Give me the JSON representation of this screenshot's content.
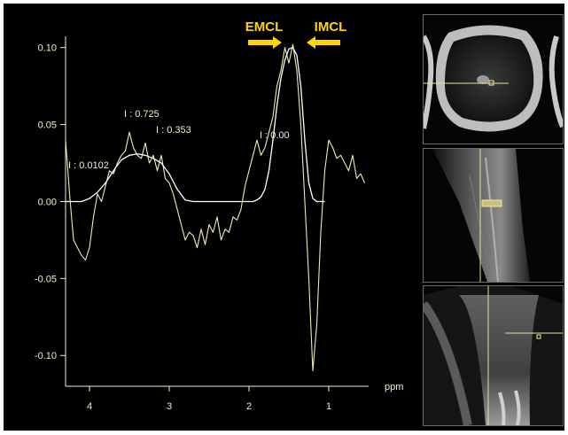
{
  "colors": {
    "background": "#000000",
    "axis": "#f3efc7",
    "spectrum": "#f0ecb4",
    "fit": "#ffffff",
    "annotation": "#ffd400",
    "crosshair": "#e8e0a0",
    "voxel": "#f5eaa0"
  },
  "labels": {
    "emcl": "EMCL",
    "imcl": "IMCL",
    "x_unit": "ppm"
  },
  "integrals": [
    {
      "text": "I : 0.0102",
      "ppm": 4.2
    },
    {
      "text": "I : 0.725",
      "ppm": 3.5
    },
    {
      "text": "I : 0.353",
      "ppm": 3.1
    },
    {
      "text": "I : 0.00",
      "ppm": 1.8
    }
  ],
  "chart_data": {
    "type": "line",
    "xlabel": "ppm",
    "ylabel": "",
    "x_reversed": true,
    "xlim": [
      4.3,
      0.5
    ],
    "ylim": [
      -0.12,
      0.105
    ],
    "xticks": [
      "4",
      "3",
      "2",
      "1"
    ],
    "yticks": [
      "0.10",
      "0.05",
      "0.00",
      "-0.05",
      "-0.10"
    ],
    "grid": false,
    "legend": "none",
    "annotations": [
      "EMCL",
      "IMCL",
      "I : 0.0102",
      "I : 0.725",
      "I : 0.353",
      "I : 0.00"
    ],
    "series": [
      {
        "x": [
          4.3,
          4.25,
          4.2,
          4.15,
          4.1,
          4.05,
          4.0,
          3.95,
          3.9,
          3.85,
          3.8,
          3.75,
          3.7,
          3.65,
          3.6,
          3.55,
          3.5,
          3.45,
          3.4,
          3.35,
          3.3,
          3.25,
          3.2,
          3.15,
          3.1,
          3.05,
          3.0,
          2.95,
          2.9,
          2.85,
          2.8,
          2.75,
          2.7,
          2.65,
          2.6,
          2.55,
          2.5,
          2.45,
          2.4,
          2.35,
          2.3,
          2.25,
          2.2,
          2.15,
          2.1,
          2.05,
          2.0,
          1.95,
          1.9,
          1.85,
          1.8,
          1.75,
          1.7,
          1.65,
          1.6,
          1.55,
          1.5,
          1.45,
          1.4,
          1.35,
          1.3,
          1.25,
          1.2,
          1.15,
          1.1,
          1.05,
          1.0,
          0.95,
          0.9,
          0.85,
          0.8,
          0.75,
          0.7,
          0.65,
          0.6,
          0.55
        ],
        "values": [
          0.04,
          0.005,
          -0.025,
          -0.03,
          -0.035,
          -0.038,
          -0.03,
          -0.01,
          0.005,
          0.0,
          0.01,
          0.02,
          0.018,
          0.025,
          0.03,
          0.033,
          0.045,
          0.035,
          0.03,
          0.028,
          0.038,
          0.025,
          0.03,
          0.02,
          0.03,
          0.015,
          0.012,
          0.005,
          -0.005,
          -0.015,
          -0.025,
          -0.02,
          -0.022,
          -0.03,
          -0.018,
          -0.028,
          -0.015,
          -0.02,
          -0.01,
          -0.025,
          -0.018,
          -0.02,
          -0.01,
          -0.012,
          -0.005,
          0.01,
          0.02,
          0.03,
          0.04,
          0.03,
          0.035,
          0.045,
          0.055,
          0.075,
          0.085,
          0.1,
          0.09,
          0.102,
          0.085,
          0.05,
          0.0,
          -0.05,
          -0.11,
          -0.08,
          -0.02,
          0.02,
          0.04,
          0.035,
          0.028,
          0.03,
          0.025,
          0.02,
          0.03,
          0.015,
          0.018,
          0.012
        ]
      },
      {
        "x": [
          4.3,
          4.2,
          4.1,
          4.0,
          3.9,
          3.8,
          3.7,
          3.6,
          3.5,
          3.4,
          3.3,
          3.2,
          3.1,
          3.0,
          2.9,
          2.8,
          2.7,
          2.6,
          2.5,
          2.4,
          2.3,
          2.2,
          2.1,
          2.0,
          1.95,
          1.9,
          1.85,
          1.8,
          1.75,
          1.7,
          1.65,
          1.6,
          1.55,
          1.5,
          1.45,
          1.4,
          1.35,
          1.3,
          1.25,
          1.2,
          1.15,
          1.1,
          1.05
        ],
        "values": [
          0.0,
          0.0,
          0.0,
          0.002,
          0.006,
          0.012,
          0.02,
          0.027,
          0.03,
          0.031,
          0.03,
          0.028,
          0.025,
          0.018,
          0.008,
          0.001,
          0.0,
          0.0,
          0.0,
          0.0,
          0.0,
          0.0,
          0.0,
          0.0,
          0.0,
          0.001,
          0.003,
          0.008,
          0.02,
          0.04,
          0.062,
          0.08,
          0.092,
          0.099,
          0.1,
          0.095,
          0.075,
          0.04,
          0.012,
          0.002,
          0.0,
          0.0,
          0.0
        ]
      }
    ]
  }
}
